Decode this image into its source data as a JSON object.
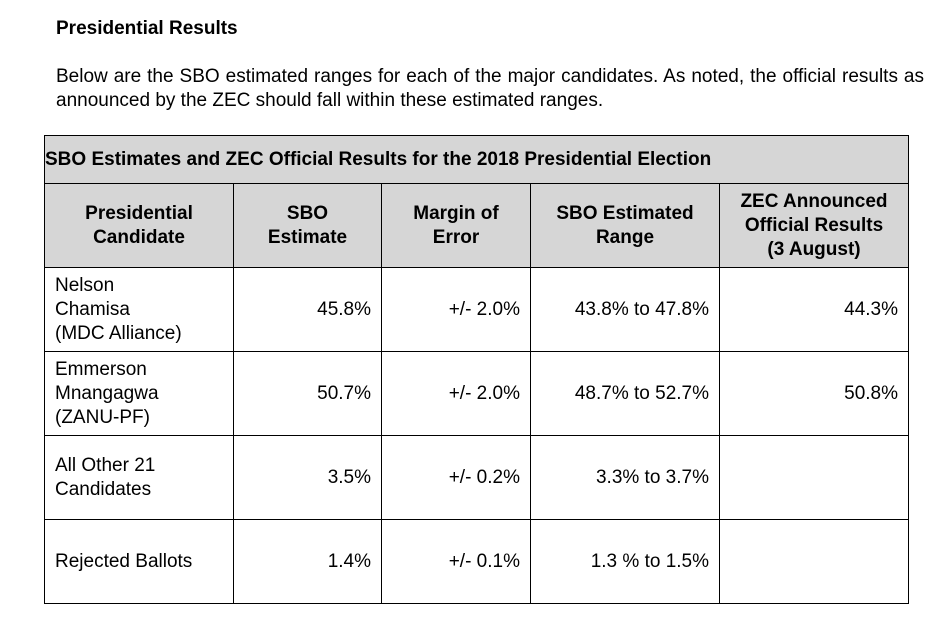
{
  "section_title": "Presidential Results",
  "intro": "Below are the SBO estimated ranges for each of the major candidates. As noted, the official results as announced by the ZEC should fall within these estimated ranges.",
  "table": {
    "caption": "SBO Estimates and ZEC Official Results for the 2018 Presidential Election",
    "headers": {
      "candidate": [
        "Presidential",
        "Candidate"
      ],
      "estimate": [
        "SBO",
        "Estimate"
      ],
      "margin": [
        "Margin of",
        "Error"
      ],
      "range": [
        "SBO Estimated",
        "Range"
      ],
      "official": [
        "ZEC Announced",
        "Official Results",
        "(3 August)"
      ]
    },
    "rows": [
      {
        "candidate": [
          "Nelson",
          "Chamisa",
          "(MDC Alliance)"
        ],
        "estimate": "45.8%",
        "margin": "+/- 2.0%",
        "range": "43.8% to 47.8%",
        "official": "44.3%"
      },
      {
        "candidate": [
          "Emmerson",
          "Mnangagwa",
          "(ZANU-PF)"
        ],
        "estimate": "50.7%",
        "margin": "+/- 2.0%",
        "range": "48.7% to 52.7%",
        "official": "50.8%"
      },
      {
        "candidate": [
          "All Other 21",
          "Candidates"
        ],
        "estimate": "3.5%",
        "margin": "+/- 0.2%",
        "range": "3.3% to 3.7%",
        "official": ""
      },
      {
        "candidate": [
          "Rejected Ballots"
        ],
        "estimate": "1.4%",
        "margin": "+/- 0.1%",
        "range": "1.3 % to 1.5%",
        "official": ""
      }
    ]
  },
  "colors": {
    "header_background": "#d6d6d6",
    "border": "#000000"
  }
}
